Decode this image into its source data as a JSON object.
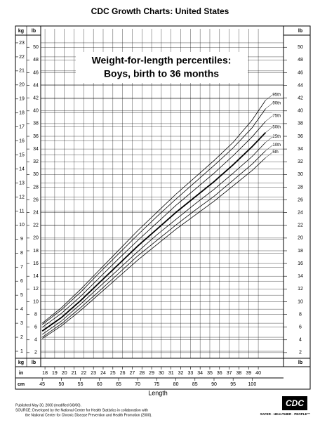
{
  "chart_data": {
    "type": "line",
    "title": "CDC Growth Charts: United States",
    "inner_title": [
      "Weight-for-length percentiles:",
      "Boys, birth to 36 months"
    ],
    "x_label": "Length",
    "units": {
      "left": [
        "kg",
        "lb"
      ],
      "right": "lb",
      "inch": "in",
      "cm": "cm"
    },
    "x": [
      45,
      50,
      55,
      60,
      65,
      70,
      75,
      80,
      85,
      90,
      95,
      100,
      103.5
    ],
    "series": [
      {
        "name": "5th",
        "color": "#000000",
        "width": 0.8,
        "values": [
          1.9,
          2.8,
          3.9,
          5.1,
          6.3,
          7.5,
          8.6,
          9.7,
          10.7,
          11.7,
          12.8,
          13.9,
          14.8
        ]
      },
      {
        "name": "10th",
        "color": "#000000",
        "width": 0.8,
        "values": [
          2.0,
          2.95,
          4.1,
          5.3,
          6.55,
          7.8,
          8.9,
          10.0,
          11.05,
          12.05,
          13.2,
          14.35,
          15.3
        ]
      },
      {
        "name": "25th",
        "color": "#000000",
        "width": 0.8,
        "values": [
          2.2,
          3.15,
          4.35,
          5.6,
          6.85,
          8.1,
          9.3,
          10.4,
          11.5,
          12.55,
          13.7,
          14.9,
          15.9
        ]
      },
      {
        "name": "50th",
        "color": "#000000",
        "width": 1.8,
        "values": [
          2.44,
          3.4,
          4.6,
          5.9,
          7.2,
          8.5,
          9.7,
          10.9,
          12.0,
          13.1,
          14.3,
          15.6,
          16.6
        ]
      },
      {
        "name": "75th",
        "color": "#000000",
        "width": 0.8,
        "values": [
          2.7,
          3.7,
          4.9,
          6.25,
          7.6,
          8.9,
          10.15,
          11.4,
          12.55,
          13.7,
          14.95,
          16.3,
          17.4
        ]
      },
      {
        "name": "90th",
        "color": "#000000",
        "width": 0.8,
        "values": [
          2.9,
          3.95,
          5.2,
          6.6,
          7.95,
          9.3,
          10.6,
          11.85,
          13.05,
          14.25,
          15.5,
          16.95,
          18.3
        ]
      },
      {
        "name": "95th",
        "color": "#000000",
        "width": 0.8,
        "values": [
          3.0,
          4.1,
          5.4,
          6.8,
          8.2,
          9.6,
          10.9,
          12.2,
          13.4,
          14.6,
          15.9,
          17.5,
          18.9
        ]
      }
    ],
    "xlim": [
      44.6,
      108.2
    ],
    "xticks": [
      45,
      50,
      55,
      60,
      65,
      70,
      75,
      80,
      85,
      90,
      95,
      100
    ],
    "x2lim": [
      17.56,
      42.6
    ],
    "x2ticks": [
      18,
      19,
      20,
      21,
      22,
      23,
      24,
      25,
      26,
      27,
      28,
      29,
      30,
      31,
      32,
      33,
      34,
      35,
      36,
      37,
      38,
      39,
      40
    ],
    "ylim": [
      0.5,
      24
    ],
    "yticks": [
      1,
      2,
      3,
      4,
      5,
      6,
      7,
      8,
      9,
      10,
      11,
      12,
      13,
      14,
      15,
      16,
      17,
      18,
      19,
      20,
      21,
      22,
      23
    ],
    "y2lim": [
      1.1,
      52.9
    ],
    "y2ticks": [
      2,
      4,
      6,
      8,
      10,
      12,
      14,
      16,
      18,
      20,
      22,
      24,
      26,
      28,
      30,
      32,
      34,
      36,
      38,
      40,
      42,
      44,
      46,
      48,
      50
    ],
    "grid": true,
    "footer": [
      "Published May 30, 2000 (modified 6/8/00).",
      "SOURCE: Developed by the National Center for Health Statistics in collaboration with",
      "the National Center for Chronic Disease Prevention and Health Promotion (2000)."
    ],
    "logo": {
      "mark": "CDC",
      "tagline": "SAFER · HEALTHIER · PEOPLE™"
    }
  }
}
